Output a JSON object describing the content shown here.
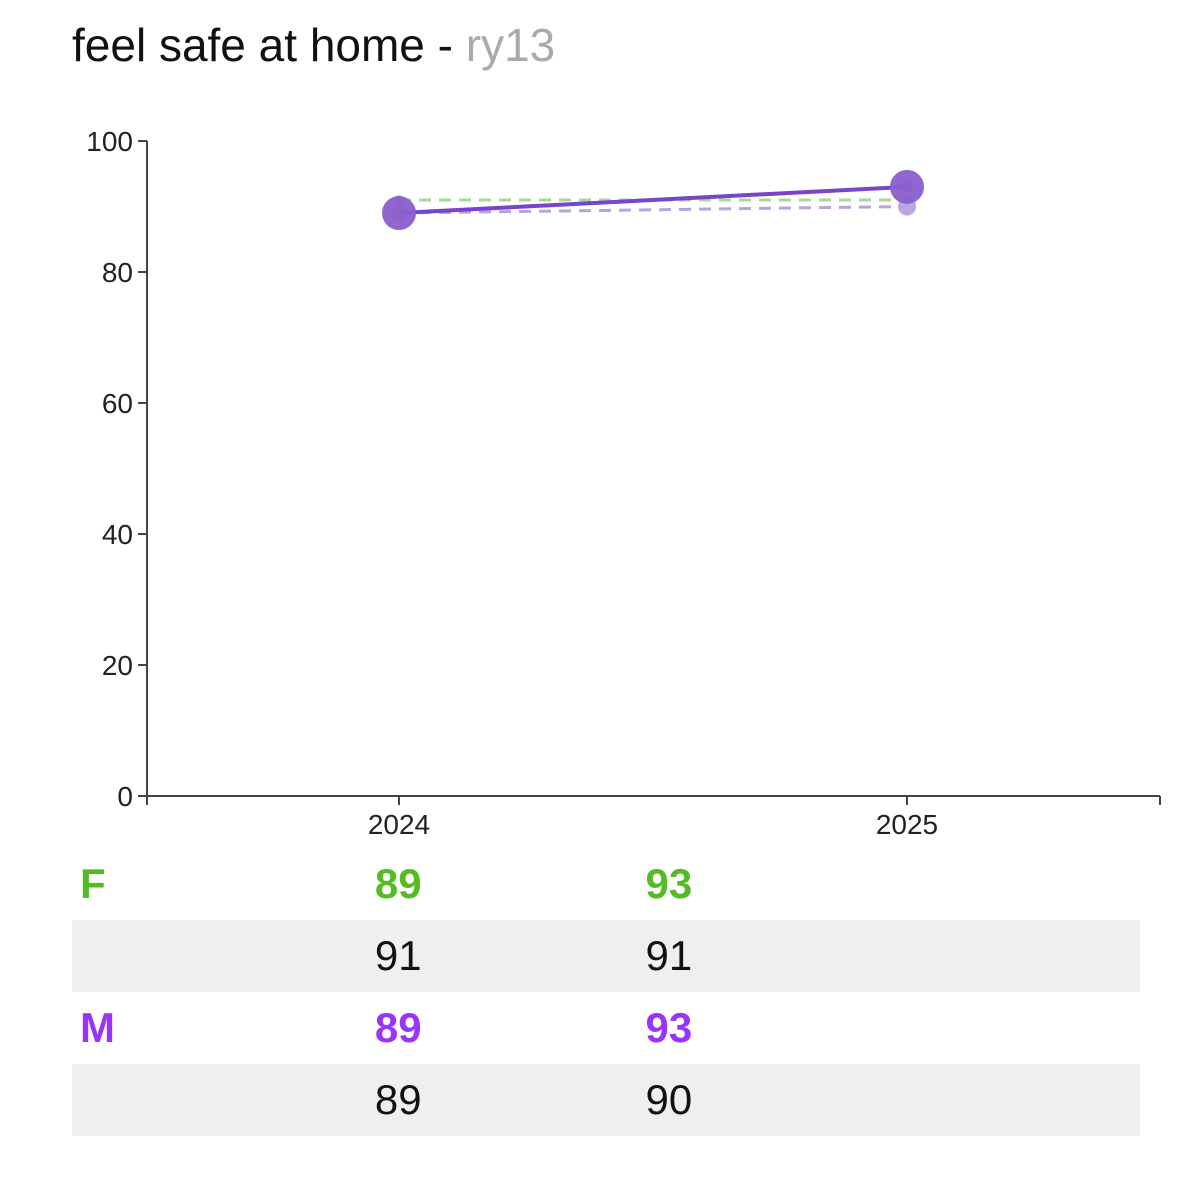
{
  "header": {
    "title": "feel safe at home -",
    "code": "ry13"
  },
  "colors": {
    "female": "#55bb22",
    "male": "#9933ff",
    "female_line": "#66aa55",
    "male_line": "#7744cc",
    "female_compare": "#a8d79a",
    "male_compare": "#b6a3e0",
    "marker": "#8a5fcf"
  },
  "chart_data": {
    "type": "line",
    "x": [
      "2024",
      "2025"
    ],
    "ylim": [
      0,
      100
    ],
    "yticks": [
      "0",
      "20",
      "40",
      "60",
      "80",
      "100"
    ],
    "grid": false,
    "series": [
      {
        "name": "F",
        "values": [
          89,
          93
        ]
      },
      {
        "values": [
          91,
          91
        ]
      },
      {
        "name": "M",
        "values": [
          89,
          93
        ]
      },
      {
        "values": [
          89,
          90
        ]
      }
    ]
  },
  "table": {
    "rows": [
      {
        "label": "F",
        "values": [
          "89",
          "93"
        ]
      },
      {
        "label": "",
        "values": [
          "91",
          "91"
        ]
      },
      {
        "label": "M",
        "values": [
          "89",
          "93"
        ]
      },
      {
        "label": "",
        "values": [
          "89",
          "90"
        ]
      }
    ]
  }
}
